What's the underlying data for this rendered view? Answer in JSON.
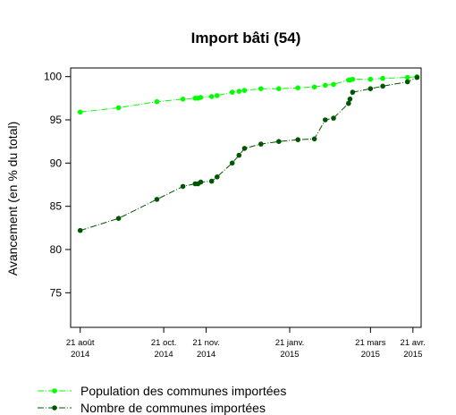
{
  "chart_data": {
    "type": "line",
    "title": "Import bâti (54)",
    "xlabel": "",
    "ylabel": "Avancement (en % du total)",
    "ylim": [
      71,
      101
    ],
    "xlim": [
      "2014-08-14",
      "2015-04-27"
    ],
    "yticks": [
      75,
      80,
      85,
      90,
      95,
      100
    ],
    "xticks": [
      {
        "date": "2014-08-21",
        "label1": "21 août",
        "label2": "2014"
      },
      {
        "date": "2014-10-21",
        "label1": "21 oct.",
        "label2": "2014"
      },
      {
        "date": "2014-11-21",
        "label1": "21 nov.",
        "label2": "2014"
      },
      {
        "date": "2015-01-21",
        "label1": "21 janv.",
        "label2": "2015"
      },
      {
        "date": "2015-03-21",
        "label1": "21 mars",
        "label2": "2015"
      },
      {
        "date": "2015-04-21",
        "label1": "21 avr.",
        "label2": "2015"
      }
    ],
    "grid": false,
    "legend_position": "bottom-left",
    "series": [
      {
        "name": "Population des communes importées",
        "color": "#00ff00",
        "line_style": "dashdot",
        "points": [
          {
            "x": "2014-08-21",
            "y": 95.9
          },
          {
            "x": "2014-09-18",
            "y": 96.4
          },
          {
            "x": "2014-10-16",
            "y": 97.1
          },
          {
            "x": "2014-11-04",
            "y": 97.4
          },
          {
            "x": "2014-11-13",
            "y": 97.5
          },
          {
            "x": "2014-11-15",
            "y": 97.5
          },
          {
            "x": "2014-11-17",
            "y": 97.6
          },
          {
            "x": "2014-11-25",
            "y": 97.7
          },
          {
            "x": "2014-11-29",
            "y": 97.8
          },
          {
            "x": "2014-12-10",
            "y": 98.2
          },
          {
            "x": "2014-12-15",
            "y": 98.3
          },
          {
            "x": "2014-12-19",
            "y": 98.4
          },
          {
            "x": "2014-12-31",
            "y": 98.6
          },
          {
            "x": "2015-01-13",
            "y": 98.6
          },
          {
            "x": "2015-01-27",
            "y": 98.7
          },
          {
            "x": "2015-02-08",
            "y": 98.8
          },
          {
            "x": "2015-02-16",
            "y": 99.0
          },
          {
            "x": "2015-02-22",
            "y": 99.1
          },
          {
            "x": "2015-03-05",
            "y": 99.6
          },
          {
            "x": "2015-03-06",
            "y": 99.6
          },
          {
            "x": "2015-03-08",
            "y": 99.7
          },
          {
            "x": "2015-03-21",
            "y": 99.7
          },
          {
            "x": "2015-03-30",
            "y": 99.8
          },
          {
            "x": "2015-04-17",
            "y": 99.9
          },
          {
            "x": "2015-04-24",
            "y": 100.0
          }
        ]
      },
      {
        "name": "Nombre de communes importées",
        "color": "#005500",
        "line_style": "dashdot",
        "points": [
          {
            "x": "2014-08-21",
            "y": 82.2
          },
          {
            "x": "2014-09-18",
            "y": 83.6
          },
          {
            "x": "2014-10-16",
            "y": 85.8
          },
          {
            "x": "2014-11-04",
            "y": 87.3
          },
          {
            "x": "2014-11-13",
            "y": 87.6
          },
          {
            "x": "2014-11-15",
            "y": 87.6
          },
          {
            "x": "2014-11-17",
            "y": 87.8
          },
          {
            "x": "2014-11-25",
            "y": 87.9
          },
          {
            "x": "2014-11-29",
            "y": 88.4
          },
          {
            "x": "2014-12-10",
            "y": 90.0
          },
          {
            "x": "2014-12-15",
            "y": 90.9
          },
          {
            "x": "2014-12-19",
            "y": 91.7
          },
          {
            "x": "2014-12-31",
            "y": 92.2
          },
          {
            "x": "2015-01-13",
            "y": 92.5
          },
          {
            "x": "2015-01-27",
            "y": 92.7
          },
          {
            "x": "2015-02-08",
            "y": 92.8
          },
          {
            "x": "2015-02-16",
            "y": 95.0
          },
          {
            "x": "2015-02-22",
            "y": 95.2
          },
          {
            "x": "2015-03-05",
            "y": 96.9
          },
          {
            "x": "2015-03-06",
            "y": 97.4
          },
          {
            "x": "2015-03-08",
            "y": 98.2
          },
          {
            "x": "2015-03-21",
            "y": 98.6
          },
          {
            "x": "2015-03-30",
            "y": 98.9
          },
          {
            "x": "2015-04-17",
            "y": 99.4
          },
          {
            "x": "2015-04-24",
            "y": 99.9
          }
        ]
      }
    ]
  }
}
